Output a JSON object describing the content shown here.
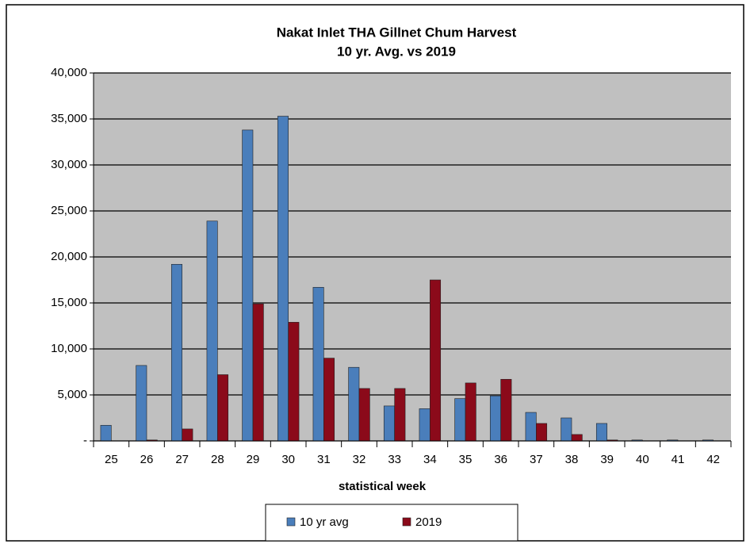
{
  "chart_data": {
    "type": "bar",
    "title": "Nakat Inlet THA Gillnet Chum Harvest",
    "subtitle": "10 yr. Avg. vs 2019",
    "x_label": "statistical week",
    "categories": [
      "25",
      "26",
      "27",
      "28",
      "29",
      "30",
      "31",
      "32",
      "33",
      "34",
      "35",
      "36",
      "37",
      "38",
      "39",
      "40",
      "41",
      "42"
    ],
    "series": [
      {
        "name": "10 yr avg",
        "color": "#4a7ebb",
        "values": [
          1700,
          8200,
          19200,
          23900,
          33800,
          35300,
          16700,
          8000,
          3800,
          3500,
          4600,
          4900,
          3100,
          2500,
          1900,
          100,
          100,
          100
        ]
      },
      {
        "name": "2019",
        "color": "#8b0a1a",
        "values": [
          0,
          100,
          1300,
          7200,
          14900,
          12900,
          9000,
          5700,
          5700,
          17500,
          6300,
          6700,
          1900,
          700,
          100,
          0,
          0,
          0
        ]
      }
    ],
    "ylim": [
      0,
      40000
    ],
    "yticks": [
      {
        "value": 0,
        "label": "-"
      },
      {
        "value": 5000,
        "label": "5,000"
      },
      {
        "value": 10000,
        "label": "10,000"
      },
      {
        "value": 15000,
        "label": "15,000"
      },
      {
        "value": 20000,
        "label": "20,000"
      },
      {
        "value": 25000,
        "label": "25,000"
      },
      {
        "value": 30000,
        "label": "30,000"
      },
      {
        "value": 35000,
        "label": "35,000"
      },
      {
        "value": 40000,
        "label": "40,000"
      }
    ],
    "grid": true,
    "legend": "bottom"
  }
}
